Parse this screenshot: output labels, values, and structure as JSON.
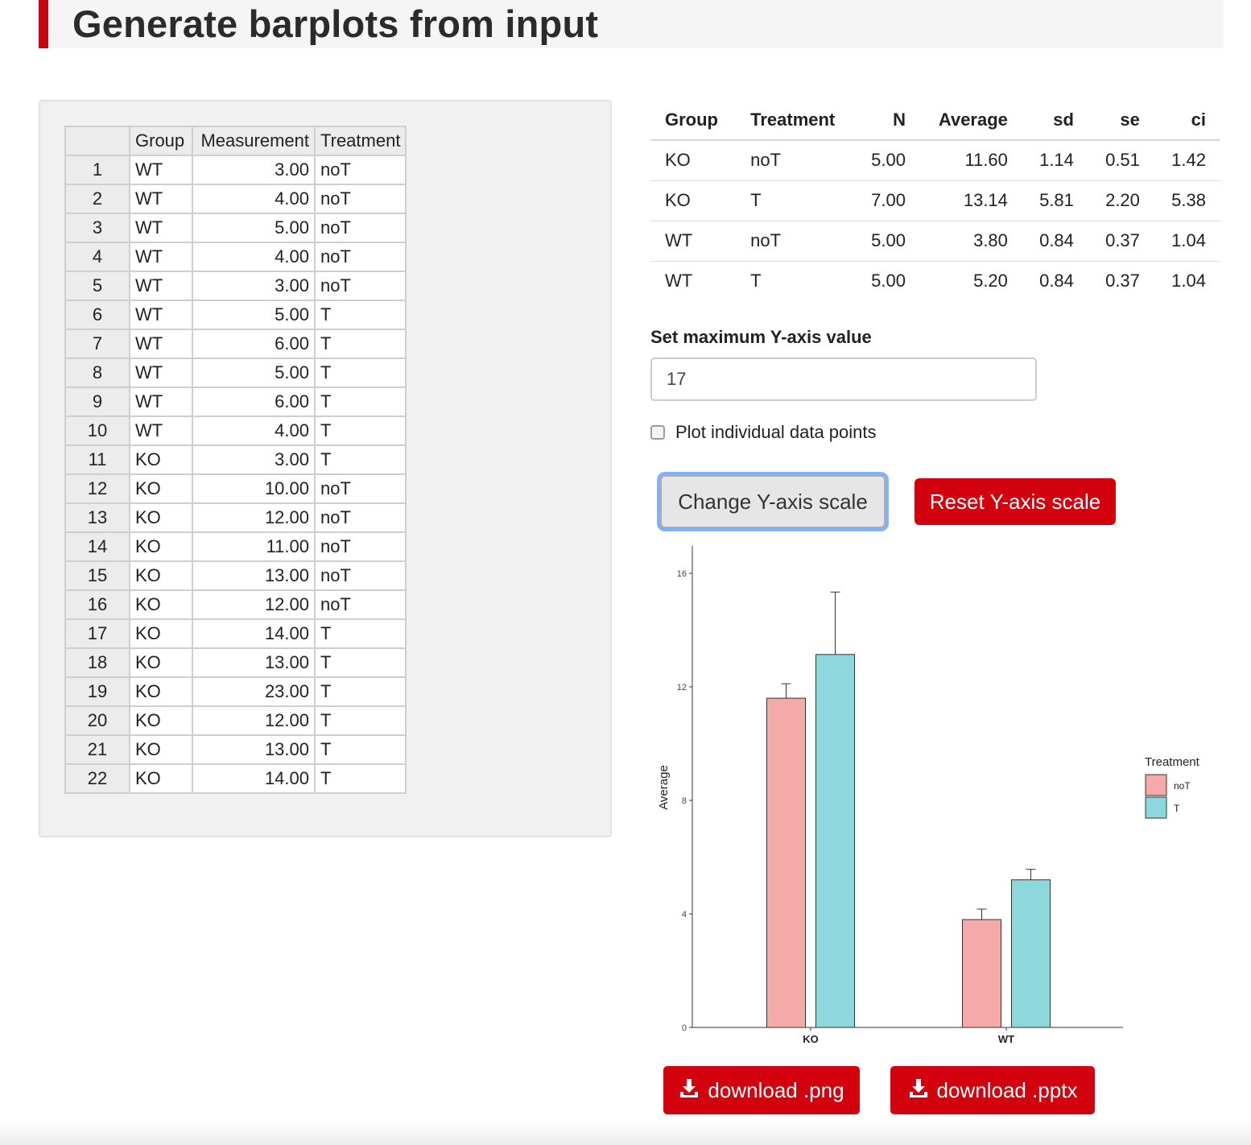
{
  "header": {
    "title": "Generate barplots from input"
  },
  "input_table": {
    "columns": [
      "Group",
      "Measurement",
      "Treatment"
    ],
    "rows": [
      {
        "n": "1",
        "group": "WT",
        "measurement": "3.00",
        "treatment": "noT"
      },
      {
        "n": "2",
        "group": "WT",
        "measurement": "4.00",
        "treatment": "noT"
      },
      {
        "n": "3",
        "group": "WT",
        "measurement": "5.00",
        "treatment": "noT"
      },
      {
        "n": "4",
        "group": "WT",
        "measurement": "4.00",
        "treatment": "noT"
      },
      {
        "n": "5",
        "group": "WT",
        "measurement": "3.00",
        "treatment": "noT"
      },
      {
        "n": "6",
        "group": "WT",
        "measurement": "5.00",
        "treatment": "T"
      },
      {
        "n": "7",
        "group": "WT",
        "measurement": "6.00",
        "treatment": "T"
      },
      {
        "n": "8",
        "group": "WT",
        "measurement": "5.00",
        "treatment": "T"
      },
      {
        "n": "9",
        "group": "WT",
        "measurement": "6.00",
        "treatment": "T"
      },
      {
        "n": "10",
        "group": "WT",
        "measurement": "4.00",
        "treatment": "T"
      },
      {
        "n": "11",
        "group": "KO",
        "measurement": "3.00",
        "treatment": "T"
      },
      {
        "n": "12",
        "group": "KO",
        "measurement": "10.00",
        "treatment": "noT"
      },
      {
        "n": "13",
        "group": "KO",
        "measurement": "12.00",
        "treatment": "noT"
      },
      {
        "n": "14",
        "group": "KO",
        "measurement": "11.00",
        "treatment": "noT"
      },
      {
        "n": "15",
        "group": "KO",
        "measurement": "13.00",
        "treatment": "noT"
      },
      {
        "n": "16",
        "group": "KO",
        "measurement": "12.00",
        "treatment": "noT"
      },
      {
        "n": "17",
        "group": "KO",
        "measurement": "14.00",
        "treatment": "T"
      },
      {
        "n": "18",
        "group": "KO",
        "measurement": "13.00",
        "treatment": "T"
      },
      {
        "n": "19",
        "group": "KO",
        "measurement": "23.00",
        "treatment": "T"
      },
      {
        "n": "20",
        "group": "KO",
        "measurement": "12.00",
        "treatment": "T"
      },
      {
        "n": "21",
        "group": "KO",
        "measurement": "13.00",
        "treatment": "T"
      },
      {
        "n": "22",
        "group": "KO",
        "measurement": "14.00",
        "treatment": "T"
      }
    ]
  },
  "summary_table": {
    "columns": [
      "Group",
      "Treatment",
      "N",
      "Average",
      "sd",
      "se",
      "ci"
    ],
    "rows": [
      [
        "KO",
        "noT",
        "5.00",
        "11.60",
        "1.14",
        "0.51",
        "1.42"
      ],
      [
        "KO",
        "T",
        "7.00",
        "13.14",
        "5.81",
        "2.20",
        "5.38"
      ],
      [
        "WT",
        "noT",
        "5.00",
        "3.80",
        "0.84",
        "0.37",
        "1.04"
      ],
      [
        "WT",
        "T",
        "5.00",
        "5.20",
        "0.84",
        "0.37",
        "1.04"
      ]
    ]
  },
  "controls": {
    "ymax_label": "Set maximum Y-axis value",
    "ymax_value": "17",
    "plot_points_label": "Plot individual data points",
    "plot_points_checked": false,
    "change_button": "Change Y-axis scale",
    "reset_button": "Reset Y-axis scale",
    "download_png": "download .png",
    "download_pptx": "download .pptx",
    "download_icon": "download-icon"
  },
  "colors": {
    "accent_red": "#d3000d",
    "bar_noT": "#f4aaa9",
    "bar_T": "#8dd8dc"
  },
  "chart_data": {
    "type": "bar",
    "categories": [
      "KO",
      "WT"
    ],
    "series": [
      {
        "name": "noT",
        "values": [
          11.6,
          3.8
        ],
        "error_upper": [
          12.11,
          4.17
        ]
      },
      {
        "name": "T",
        "values": [
          13.14,
          5.2
        ],
        "error_upper": [
          15.34,
          5.57
        ]
      }
    ],
    "xlabel": "",
    "ylabel": "Average",
    "yticks": [
      0,
      4,
      8,
      12,
      16
    ],
    "ylim": [
      0,
      17
    ],
    "legend_title": "Treatment",
    "legend_position": "right",
    "grid": false
  }
}
